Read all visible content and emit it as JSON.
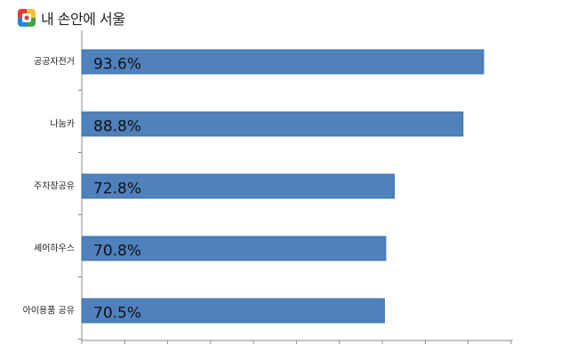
{
  "brand": {
    "name": "내 손안에 서울",
    "logo_icon": "seoul-logo-icon",
    "logo_colors": [
      "#e53935",
      "#fbc02d",
      "#1e88e5",
      "#43a047"
    ]
  },
  "chart_data": {
    "type": "bar",
    "orientation": "horizontal",
    "title": "",
    "xlabel": "",
    "ylabel": "",
    "categories": [
      "공공자전거",
      "나눔카",
      "주차장공유",
      "셰어하우스",
      "아이용품 공유"
    ],
    "values": [
      93.6,
      88.8,
      72.8,
      70.8,
      70.5
    ],
    "data_labels": [
      "93.6%",
      "88.8%",
      "72.8%",
      "70.8%",
      "70.5%"
    ],
    "xlim": [
      0,
      100
    ],
    "bar_color": "#4f81bd",
    "bar_border_color": "#3a6ea5",
    "grid": false,
    "legend": "none"
  }
}
